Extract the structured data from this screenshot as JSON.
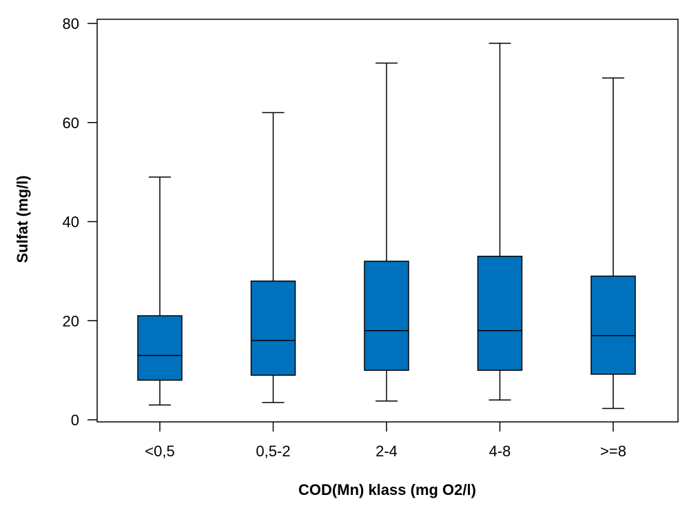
{
  "chart_data": {
    "type": "boxplot",
    "title": "",
    "xlabel": "COD(Mn) klass (mg O2/l)",
    "ylabel": "Sulfat (mg/l)",
    "ylim": [
      0,
      80
    ],
    "yticks": [
      0,
      20,
      40,
      60,
      80
    ],
    "grid": false,
    "box_color": "#0072BD",
    "line_color": "#000000",
    "categories": [
      "<0,5",
      "0,5-2",
      "2-4",
      "4-8",
      ">=8"
    ],
    "boxes": [
      {
        "category": "<0,5",
        "whisker_low": 3,
        "q1": 8,
        "median": 13,
        "q3": 21,
        "whisker_high": 49
      },
      {
        "category": "0,5-2",
        "whisker_low": 3.5,
        "q1": 9,
        "median": 16,
        "q3": 28,
        "whisker_high": 62
      },
      {
        "category": "2-4",
        "whisker_low": 3.8,
        "q1": 10,
        "median": 18,
        "q3": 32,
        "whisker_high": 72
      },
      {
        "category": "4-8",
        "whisker_low": 4,
        "q1": 10,
        "median": 18,
        "q3": 33,
        "whisker_high": 76
      },
      {
        "category": ">=8",
        "whisker_low": 2.3,
        "q1": 9.2,
        "median": 17,
        "q3": 29,
        "whisker_high": 69
      }
    ]
  }
}
